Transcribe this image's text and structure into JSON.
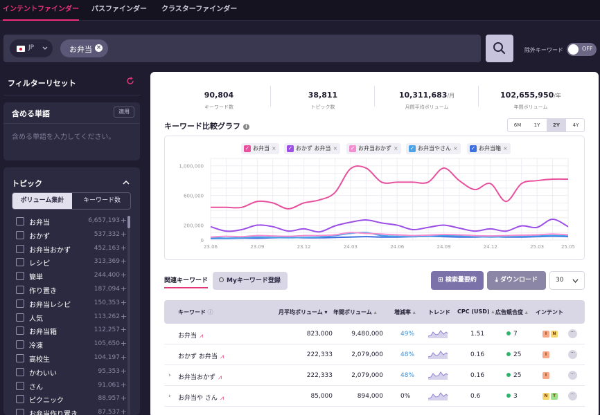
{
  "nav": {
    "tabs": [
      "インテントファインダー",
      "パスファインダー",
      "クラスターファインダー"
    ]
  },
  "search": {
    "country": "JP",
    "chip": "お弁当",
    "exclude_label": "除外キーワード",
    "toggle": "OFF"
  },
  "sidebar": {
    "filter_reset": "フィルターリセット",
    "include": {
      "title": "含める単語",
      "apply": "適用",
      "placeholder": "含める単語を入力してください。"
    },
    "topic": {
      "title": "トピック",
      "tabs": [
        "ボリューム集計",
        "キーワード数"
      ],
      "items": [
        {
          "name": "お弁当",
          "count": "6,657,193"
        },
        {
          "name": "おかず",
          "count": "537,332"
        },
        {
          "name": "お弁当おかず",
          "count": "452,163"
        },
        {
          "name": "レシピ",
          "count": "313,369"
        },
        {
          "name": "簡単",
          "count": "244,400"
        },
        {
          "name": "作り置き",
          "count": "187,094"
        },
        {
          "name": "お弁当レシピ",
          "count": "150,353"
        },
        {
          "name": "人気",
          "count": "113,262"
        },
        {
          "name": "お弁当箱",
          "count": "112,257"
        },
        {
          "name": "冷凍",
          "count": "105,650"
        },
        {
          "name": "高校生",
          "count": "104,197"
        },
        {
          "name": "かわいい",
          "count": "95,353"
        },
        {
          "name": "さん",
          "count": "91,061"
        },
        {
          "name": "ピクニック",
          "count": "88,957"
        },
        {
          "name": "お弁当作り置き",
          "count": "87,537"
        }
      ]
    }
  },
  "stats": [
    {
      "value": "90,804",
      "unit": "",
      "label": "キーワード数"
    },
    {
      "value": "38,811",
      "unit": "",
      "label": "トピック数"
    },
    {
      "value": "10,311,683",
      "unit": "/月",
      "label": "月間平均ボリューム"
    },
    {
      "value": "102,655,950",
      "unit": "/年",
      "label": "年間ボリューム"
    }
  ],
  "graph": {
    "title": "キーワード比較グラフ",
    "ranges": [
      "6M",
      "1Y",
      "2Y",
      "4Y"
    ],
    "active_range": "2Y"
  },
  "colors": {
    "accent": "#e2357a",
    "s1": "#e84f9c",
    "s2": "#9b4de6",
    "s3": "#f28ed0",
    "s4": "#4aa3e8",
    "s5": "#3b6fe0"
  },
  "chart_data": {
    "type": "line",
    "x": [
      "23.06",
      "23.07",
      "23.08",
      "23.09",
      "23.10",
      "23.11",
      "23.12",
      "24.01",
      "24.02",
      "24.03",
      "24.04",
      "24.05",
      "24.06",
      "24.07",
      "24.08",
      "24.09",
      "24.10",
      "24.11",
      "24.12",
      "25.01",
      "25.02",
      "25.03",
      "25.04",
      "25.05"
    ],
    "x_ticks": [
      "23.06",
      "23.09",
      "23.12",
      "24.03",
      "24.06",
      "24.09",
      "24.12",
      "25.03",
      "25.05"
    ],
    "y_ticks": [
      "1,000,000",
      "600,000",
      "200,000",
      "0"
    ],
    "ylim": [
      0,
      1100000
    ],
    "series": [
      {
        "name": "お弁当",
        "color": "#e84f9c",
        "values": [
          440000,
          440000,
          440000,
          520000,
          500000,
          420000,
          500000,
          540000,
          640000,
          960000,
          970000,
          780000,
          780000,
          780000,
          780000,
          970000,
          800000,
          680000,
          760000,
          520000,
          760000,
          800000,
          820000,
          820000
        ]
      },
      {
        "name": "おかず お弁当",
        "color": "#9b4de6",
        "values": [
          180000,
          120000,
          140000,
          200000,
          180000,
          120000,
          150000,
          110000,
          190000,
          240000,
          270000,
          230000,
          200000,
          140000,
          170000,
          200000,
          160000,
          120000,
          150000,
          120000,
          190000,
          170000,
          280000,
          180000
        ]
      },
      {
        "name": "お弁当おかず",
        "color": "#f28ed0",
        "values": [
          40000,
          50000,
          45000,
          60000,
          55000,
          50000,
          60000,
          60000,
          70000,
          100000,
          90000,
          80000,
          70000,
          60000,
          65000,
          75000,
          70000,
          60000,
          55000,
          60000,
          65000,
          70000,
          80000,
          70000
        ]
      },
      {
        "name": "お弁当やさん",
        "color": "#4aa3e8",
        "values": [
          30000,
          25000,
          30000,
          40000,
          35000,
          30000,
          35000,
          40000,
          60000,
          90000,
          100000,
          60000,
          50000,
          45000,
          50000,
          60000,
          55000,
          45000,
          40000,
          45000,
          50000,
          55000,
          60000,
          55000
        ]
      },
      {
        "name": "お弁当箱",
        "color": "#3b6fe0",
        "values": [
          20000,
          20000,
          25000,
          25000,
          30000,
          35000,
          30000,
          30000,
          35000,
          40000,
          45000,
          40000,
          40000,
          45000,
          50000,
          45000,
          40000,
          40000,
          45000,
          40000,
          40000,
          45000,
          50000,
          45000
        ]
      }
    ]
  },
  "related": {
    "tab": "関連キーワード",
    "mykw": "Myキーワード登録",
    "summary_btn": "検索量要約",
    "download_btn": "ダウンロード",
    "per_page": "30",
    "headers": {
      "keyword": "キーワード",
      "monthly": "月平均ボリューム",
      "yearly": "年間ボリューム",
      "growth": "増減率",
      "trend": "トレンド",
      "cpc": "CPC (USD)",
      "competition": "広告競合度",
      "intent": "インテント"
    },
    "rows": [
      {
        "kw": "お弁当",
        "monthly": "823,000",
        "yearly": "9,480,000",
        "growth": "49%",
        "cpc": "1.51",
        "comp": "7",
        "intents": [
          "I",
          "N"
        ],
        "expand": false
      },
      {
        "kw": "おかず お弁当",
        "monthly": "222,333",
        "yearly": "2,079,000",
        "growth": "48%",
        "cpc": "0.16",
        "comp": "25",
        "intents": [
          "I"
        ],
        "expand": false
      },
      {
        "kw": "お弁当おかず",
        "monthly": "222,333",
        "yearly": "2,079,000",
        "growth": "48%",
        "cpc": "0.16",
        "comp": "25",
        "intents": [
          "I"
        ],
        "expand": true
      },
      {
        "kw": "お弁当や さん",
        "monthly": "85,000",
        "yearly": "894,000",
        "growth": "0%",
        "cpc": "0.6",
        "comp": "3",
        "intents": [
          "N",
          "T"
        ],
        "expand": true
      }
    ]
  }
}
